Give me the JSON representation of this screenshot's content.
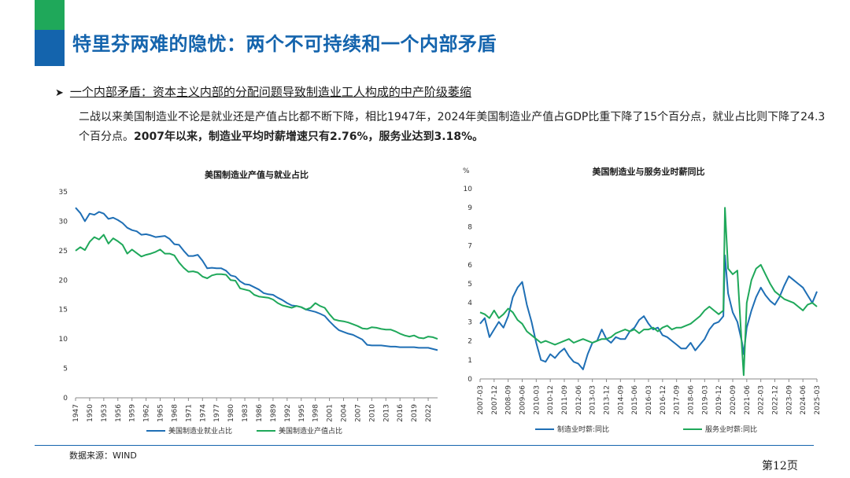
{
  "slide": {
    "title": "特里芬两难的隐忧：两个不可持续和一个内部矛盾",
    "subhead": "一个内部矛盾：资本主义内部的分配问题导致制造业工人构成的中产阶级萎缩",
    "body_plain": "二战以来美国制造业不论是就业还是产值占比都不断下降，相比1947年，2024年美国制造业产值占GDP比重下降了15个百分点，就业占比则下降了24.3个百分点。",
    "body_bold": "2007年以来，制造业平均时薪增速只有2.76%，服务业达到3.18%。",
    "source": "数据来源：WIND",
    "page_number": "第12页",
    "colors": {
      "brand_blue": "#1464ad",
      "brand_green": "#1fa85a"
    }
  },
  "chart_data": [
    {
      "type": "line",
      "title": "美国制造业产值与就业占比",
      "ylim": [
        0,
        35
      ],
      "yticks": [
        0,
        5,
        10,
        15,
        20,
        25,
        30,
        35
      ],
      "xticks": [
        "1947",
        "1950",
        "1953",
        "1956",
        "1959",
        "1962",
        "1965",
        "1968",
        "1971",
        "1974",
        "1977",
        "1980",
        "1983",
        "1986",
        "1989",
        "1992",
        "1995",
        "1998",
        "2001",
        "2004",
        "2007",
        "2010",
        "2013",
        "2016",
        "2019",
        "2022"
      ],
      "x": [
        1947,
        1948,
        1949,
        1950,
        1951,
        1952,
        1953,
        1954,
        1955,
        1956,
        1957,
        1958,
        1959,
        1960,
        1961,
        1962,
        1963,
        1964,
        1965,
        1966,
        1967,
        1968,
        1969,
        1970,
        1971,
        1972,
        1973,
        1974,
        1975,
        1976,
        1977,
        1978,
        1979,
        1980,
        1981,
        1982,
        1983,
        1984,
        1985,
        1986,
        1987,
        1988,
        1989,
        1990,
        1991,
        1992,
        1993,
        1994,
        1995,
        1996,
        1997,
        1998,
        1999,
        2000,
        2001,
        2002,
        2003,
        2004,
        2005,
        2006,
        2007,
        2008,
        2009,
        2010,
        2011,
        2012,
        2013,
        2014,
        2015,
        2016,
        2017,
        2018,
        2019,
        2020,
        2021,
        2022,
        2023,
        2024
      ],
      "series": [
        {
          "name": "美国制造业就业占比",
          "color": "#1f6fb5",
          "values": [
            32.3,
            31.4,
            30.0,
            31.3,
            31.1,
            31.6,
            31.3,
            30.4,
            30.6,
            30.2,
            29.7,
            28.9,
            28.5,
            28.3,
            27.7,
            27.8,
            27.6,
            27.3,
            27.4,
            27.5,
            27.0,
            26.1,
            26.0,
            25.0,
            24.1,
            24.1,
            24.3,
            23.3,
            22.0,
            22.1,
            22.0,
            22.0,
            21.6,
            20.8,
            20.6,
            19.8,
            19.3,
            19.2,
            18.8,
            18.4,
            17.8,
            17.6,
            17.5,
            17.0,
            16.6,
            16.1,
            15.7,
            15.6,
            15.4,
            15.0,
            14.8,
            14.6,
            14.3,
            13.9,
            13.0,
            12.2,
            11.5,
            11.2,
            10.9,
            10.7,
            10.3,
            9.9,
            9.0,
            8.9,
            8.9,
            8.9,
            8.8,
            8.7,
            8.7,
            8.6,
            8.6,
            8.6,
            8.6,
            8.5,
            8.5,
            8.5,
            8.3,
            8.1
          ]
        },
        {
          "name": "美国制造业产值占比",
          "color": "#1fa85a",
          "values": [
            25.0,
            25.6,
            25.1,
            26.5,
            27.3,
            26.9,
            27.7,
            26.2,
            27.1,
            26.6,
            26.0,
            24.5,
            25.2,
            24.6,
            24.0,
            24.3,
            24.5,
            24.8,
            25.2,
            24.5,
            24.5,
            24.2,
            23.0,
            22.1,
            21.4,
            21.5,
            21.3,
            20.6,
            20.3,
            20.8,
            21.0,
            21.0,
            20.9,
            20.0,
            19.9,
            18.6,
            18.4,
            18.2,
            17.5,
            17.2,
            17.1,
            17.0,
            16.7,
            16.1,
            15.7,
            15.5,
            15.3,
            15.6,
            15.4,
            15.0,
            15.3,
            16.1,
            15.6,
            15.3,
            14.2,
            13.3,
            13.1,
            13.0,
            12.8,
            12.5,
            12.2,
            11.8,
            11.7,
            12.0,
            11.9,
            11.7,
            11.6,
            11.6,
            11.3,
            10.9,
            10.6,
            10.4,
            10.6,
            10.2,
            10.1,
            10.4,
            10.3,
            10.0
          ]
        }
      ]
    },
    {
      "type": "line",
      "title": "美国制造业与服务业时薪同比",
      "ylabel": "%",
      "ylim": [
        0,
        10
      ],
      "yticks": [
        0,
        1,
        2,
        3,
        4,
        5,
        6,
        7,
        8,
        9,
        10
      ],
      "xticks": [
        "2007-03",
        "2007-12",
        "2008-09",
        "2009-06",
        "2010-03",
        "2010-12",
        "2011-09",
        "2012-06",
        "2013-03",
        "2013-12",
        "2014-09",
        "2015-06",
        "2016-03",
        "2016-12",
        "2017-09",
        "2018-06",
        "2019-03",
        "2019-12",
        "2020-09",
        "2021-06",
        "2022-03",
        "2022-12",
        "2023-09",
        "2024-06",
        "2025-03"
      ],
      "x": [
        "2007-03",
        "2007-06",
        "2007-09",
        "2007-12",
        "2008-03",
        "2008-06",
        "2008-09",
        "2008-12",
        "2009-03",
        "2009-06",
        "2009-09",
        "2009-12",
        "2010-03",
        "2010-06",
        "2010-09",
        "2010-12",
        "2011-03",
        "2011-06",
        "2011-09",
        "2011-12",
        "2012-03",
        "2012-06",
        "2012-09",
        "2012-12",
        "2013-03",
        "2013-06",
        "2013-09",
        "2013-12",
        "2014-03",
        "2014-06",
        "2014-09",
        "2014-12",
        "2015-03",
        "2015-06",
        "2015-09",
        "2015-12",
        "2016-03",
        "2016-06",
        "2016-09",
        "2016-12",
        "2017-03",
        "2017-06",
        "2017-09",
        "2017-12",
        "2018-03",
        "2018-06",
        "2018-09",
        "2018-12",
        "2019-03",
        "2019-06",
        "2019-09",
        "2019-12",
        "2020-03",
        "2020-04",
        "2020-06",
        "2020-09",
        "2020-12",
        "2021-03",
        "2021-04",
        "2021-06",
        "2021-09",
        "2021-12",
        "2022-03",
        "2022-06",
        "2022-09",
        "2022-12",
        "2023-03",
        "2023-06",
        "2023-09",
        "2023-12",
        "2024-03",
        "2024-06",
        "2024-09",
        "2024-12",
        "2025-03"
      ],
      "series": [
        {
          "name": "制造业时薪:同比",
          "color": "#1f6fb5",
          "values": [
            2.9,
            3.2,
            2.2,
            2.6,
            3.0,
            2.7,
            3.3,
            4.3,
            4.8,
            5.1,
            3.9,
            3.0,
            1.9,
            1.0,
            0.9,
            1.3,
            1.1,
            1.4,
            1.6,
            1.2,
            0.9,
            0.8,
            0.5,
            1.3,
            1.9,
            2.0,
            2.6,
            2.1,
            1.9,
            2.2,
            2.1,
            2.1,
            2.5,
            2.7,
            3.1,
            3.3,
            2.9,
            2.6,
            2.7,
            2.3,
            2.2,
            2.0,
            1.8,
            1.6,
            1.6,
            1.9,
            1.5,
            1.8,
            2.1,
            2.6,
            2.9,
            3.0,
            3.3,
            6.5,
            4.5,
            3.5,
            3.0,
            1.9,
            1.3,
            2.7,
            3.6,
            4.3,
            4.8,
            4.4,
            4.1,
            3.9,
            4.3,
            4.9,
            5.4,
            5.2,
            5.0,
            4.8,
            4.4,
            4.0,
            4.6
          ]
        },
        {
          "name": "服务业时薪:同比",
          "color": "#1fa85a",
          "values": [
            3.5,
            3.4,
            3.2,
            3.6,
            3.2,
            3.4,
            3.7,
            3.5,
            3.1,
            2.9,
            2.5,
            2.3,
            2.1,
            1.9,
            2.0,
            1.9,
            1.8,
            1.9,
            2.0,
            2.1,
            1.9,
            2.0,
            2.1,
            2.0,
            1.9,
            2.0,
            2.1,
            2.1,
            2.2,
            2.4,
            2.5,
            2.6,
            2.5,
            2.6,
            2.4,
            2.6,
            2.6,
            2.7,
            2.5,
            2.7,
            2.8,
            2.6,
            2.7,
            2.7,
            2.8,
            2.9,
            3.1,
            3.3,
            3.6,
            3.8,
            3.6,
            3.4,
            3.6,
            9.0,
            5.8,
            5.5,
            5.7,
            1.5,
            0.2,
            4.0,
            5.2,
            5.8,
            6.0,
            5.5,
            5.0,
            4.6,
            4.4,
            4.2,
            4.1,
            4.0,
            3.8,
            3.6,
            3.9,
            4.0,
            3.8
          ]
        }
      ]
    }
  ]
}
